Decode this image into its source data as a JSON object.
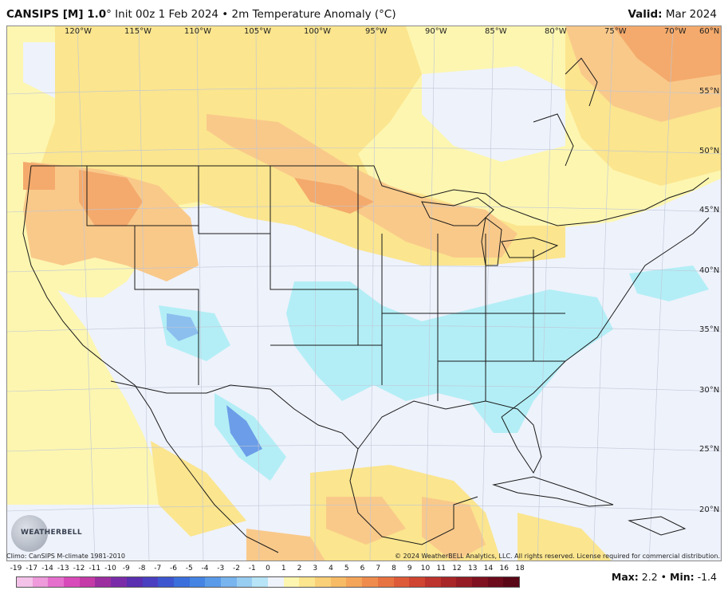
{
  "header": {
    "model": "CANSIPS [M] 1.0",
    "degree_mark": "°",
    "subtitle": " Init 00z 1 Feb 2024 • 2m Temperature Anomaly (°C)",
    "valid_label": "Valid:",
    "valid_value": " Mar 2024"
  },
  "map": {
    "longitudes": [
      "120°W",
      "115°W",
      "110°W",
      "105°W",
      "100°W",
      "95°W",
      "90°W",
      "85°W",
      "80°W",
      "75°W",
      "70°W",
      "60°N"
    ],
    "latitudes": [
      "55°N",
      "50°N",
      "45°N",
      "40°N",
      "35°N",
      "30°N",
      "25°N",
      "20°N"
    ]
  },
  "colors": {
    "neutral": "#eef2fb",
    "light_yellow": "#fdf6b0",
    "yellow": "#fbe58e",
    "light_orange": "#f9c98a",
    "orange": "#f4aa6c",
    "light_blue": "#b3eef6",
    "mid_blue": "#8cbfee",
    "blue": "#6b9de8"
  },
  "footer": {
    "climo": "Climo: CanSIPS M-climate 1981-2010",
    "copyright": "© 2024 WeatherBELL Analytics, LLC. All rights reserved. License required for commercial distribution.",
    "logo_text": "WEATHERBELL"
  },
  "scale": {
    "ticks": [
      "-19",
      "-17",
      "-14",
      "-13",
      "-12",
      "-11",
      "-10",
      "-9",
      "-8",
      "-7",
      "-6",
      "-5",
      "-4",
      "-3",
      "-2",
      "-1",
      "0",
      "1",
      "2",
      "3",
      "4",
      "5",
      "6",
      "7",
      "8",
      "9",
      "10",
      "11",
      "12",
      "13",
      "14",
      "16",
      "18"
    ],
    "colors": [
      "#f4c2e8",
      "#ee9adb",
      "#e56fcd",
      "#d84ab9",
      "#c43aa6",
      "#9c2ea0",
      "#7a2ca8",
      "#5a2fb0",
      "#4a3fc0",
      "#3d56cf",
      "#3b6fdc",
      "#4584e3",
      "#5a9be9",
      "#78b4ee",
      "#98cdf2",
      "#b7e4f6",
      "#eef2fb",
      "#fdf6b0",
      "#fbe58e",
      "#f9d078",
      "#f7bb66",
      "#f4a55a",
      "#ef8c4d",
      "#e87342",
      "#de5b39",
      "#cf4532",
      "#bd332d",
      "#a92628",
      "#951b24",
      "#7f1120",
      "#6b0b1c",
      "#590617"
    ]
  },
  "stats": {
    "max_label": "Max:",
    "max_value": " 2.2",
    "sep": " • ",
    "min_label": "Min:",
    "min_value": " -1.4"
  }
}
